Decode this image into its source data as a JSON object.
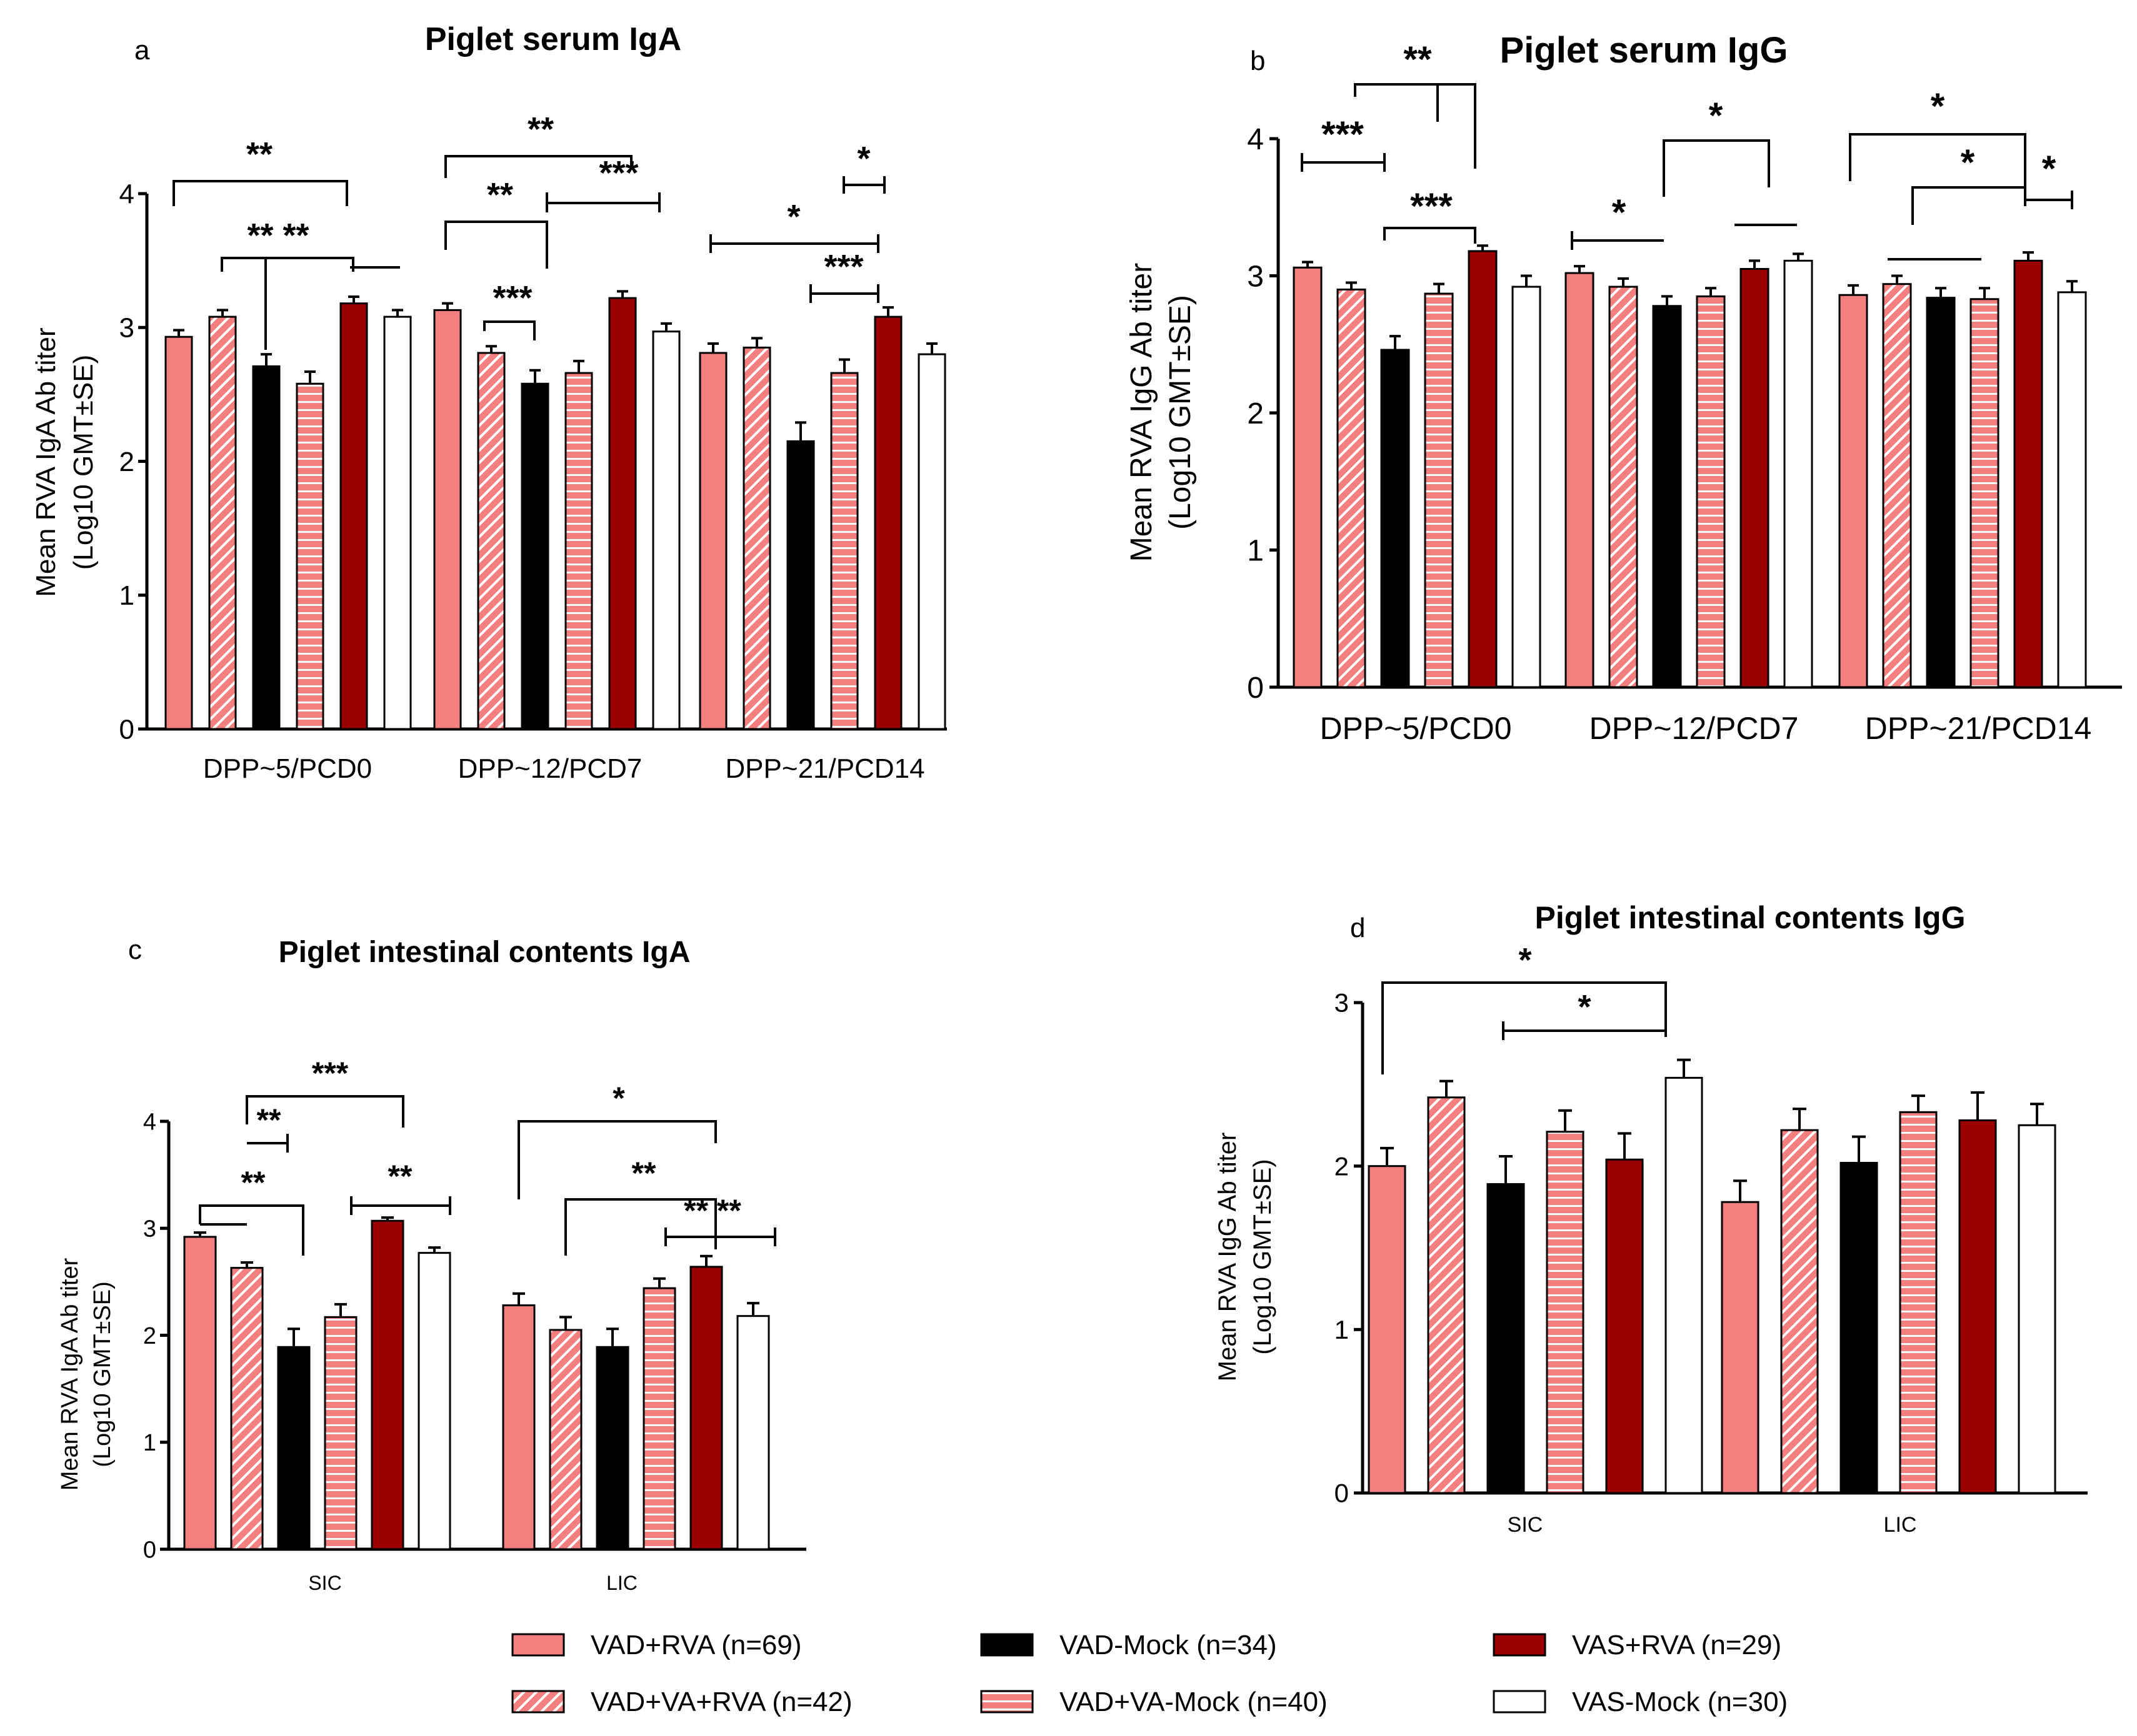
{
  "figure": {
    "group_colors": {
      "VAD+RVA": "#f47f7f",
      "VAD+VA+RVA": "#f47f7f",
      "VAD-Mock": "#000000",
      "VAD+VA-Mock": "#f47f7f",
      "VAS+RVA": "#9b0000",
      "VAS-Mock": "#ffffff"
    },
    "group_patterns": {
      "VAD+RVA": "solid",
      "VAD+VA+RVA": "diagonal-hatch",
      "VAD-Mock": "solid",
      "VAD+VA-Mock": "horizontal-lines",
      "VAS+RVA": "solid",
      "VAS-Mock": "solid"
    }
  },
  "legend": [
    {
      "group": "VAD+RVA",
      "label": "VAD+RVA (n=69)"
    },
    {
      "group": "VAD-Mock",
      "label": "VAD-Mock (n=34)"
    },
    {
      "group": "VAS+RVA",
      "label": "VAS+RVA (n=29)"
    },
    {
      "group": "VAD+VA+RVA",
      "label": "VAD+VA+RVA (n=42)"
    },
    {
      "group": "VAD+VA-Mock",
      "label": "VAD+VA-Mock (n=40)"
    },
    {
      "group": "VAS-Mock",
      "label": "VAS-Mock (n=30)"
    }
  ],
  "chart_data": [
    {
      "panel": "a",
      "type": "bar",
      "title": "Piglet serum IgA",
      "ylabel_line1": "Mean RVA IgA Ab titer",
      "ylabel_line2": "(Log10 GMT±SE)",
      "xlabel": "",
      "ylim": [
        0,
        4
      ],
      "yticks": [
        0,
        1,
        2,
        3,
        4
      ],
      "categories": [
        "DPP~5/PCD0",
        "DPP~12/PCD7",
        "DPP~21/PCD14"
      ],
      "series": [
        {
          "name": "VAD+RVA",
          "values": [
            2.93,
            3.13,
            2.81
          ],
          "se": [
            0.05,
            0.05,
            0.07
          ]
        },
        {
          "name": "VAD+VA+RVA",
          "values": [
            3.08,
            2.81,
            2.85
          ],
          "se": [
            0.05,
            0.05,
            0.07
          ]
        },
        {
          "name": "VAD-Mock",
          "values": [
            2.71,
            2.58,
            2.15
          ],
          "se": [
            0.09,
            0.1,
            0.14
          ]
        },
        {
          "name": "VAD+VA-Mock",
          "values": [
            2.58,
            2.66,
            2.66
          ],
          "se": [
            0.09,
            0.09,
            0.1
          ]
        },
        {
          "name": "VAS+RVA",
          "values": [
            3.18,
            3.22,
            3.08
          ],
          "se": [
            0.05,
            0.05,
            0.07
          ]
        },
        {
          "name": "VAS-Mock",
          "values": [
            3.08,
            2.97,
            2.8
          ],
          "se": [
            0.05,
            0.06,
            0.08
          ]
        }
      ],
      "annotations": [
        "**",
        "** **",
        "**",
        "***",
        "**",
        "***",
        "*",
        "*",
        "***"
      ]
    },
    {
      "panel": "b",
      "type": "bar",
      "title": "Piglet serum IgG",
      "ylabel_line1": "Mean RVA IgG Ab titer",
      "ylabel_line2": "(Log10 GMT±SE)",
      "xlabel": "",
      "ylim": [
        0,
        4
      ],
      "yticks": [
        0,
        1,
        2,
        3,
        4
      ],
      "categories": [
        "DPP~5/PCD0",
        "DPP~12/PCD7",
        "DPP~21/PCD14"
      ],
      "series": [
        {
          "name": "VAD+RVA",
          "values": [
            3.06,
            3.02,
            2.86
          ],
          "se": [
            0.04,
            0.05,
            0.07
          ]
        },
        {
          "name": "VAD+VA+RVA",
          "values": [
            2.9,
            2.92,
            2.94
          ],
          "se": [
            0.05,
            0.06,
            0.06
          ]
        },
        {
          "name": "VAD-Mock",
          "values": [
            2.46,
            2.78,
            2.84
          ],
          "se": [
            0.1,
            0.07,
            0.07
          ]
        },
        {
          "name": "VAD+VA-Mock",
          "values": [
            2.87,
            2.85,
            2.83
          ],
          "se": [
            0.07,
            0.06,
            0.08
          ]
        },
        {
          "name": "VAS+RVA",
          "values": [
            3.18,
            3.05,
            3.11
          ],
          "se": [
            0.04,
            0.06,
            0.06
          ]
        },
        {
          "name": "VAS-Mock",
          "values": [
            2.92,
            3.11,
            2.88
          ],
          "se": [
            0.08,
            0.05,
            0.08
          ]
        }
      ],
      "annotations": [
        "**",
        "***",
        "***",
        "*",
        "*",
        "*",
        "*",
        "*"
      ]
    },
    {
      "panel": "c",
      "type": "bar",
      "title": "Piglet intestinal contents IgA",
      "ylabel_line1": "Mean RVA IgA Ab titer",
      "ylabel_line2": "(Log10 GMT±SE)",
      "xlabel": "",
      "ylim": [
        0,
        4
      ],
      "yticks": [
        0,
        1,
        2,
        3,
        4
      ],
      "categories": [
        "SIC",
        "LIC"
      ],
      "series": [
        {
          "name": "VAD+RVA",
          "values": [
            2.92,
            2.28
          ],
          "se": [
            0.04,
            0.11
          ]
        },
        {
          "name": "VAD+VA+RVA",
          "values": [
            2.63,
            2.05
          ],
          "se": [
            0.05,
            0.12
          ]
        },
        {
          "name": "VAD-Mock",
          "values": [
            1.89,
            1.89
          ],
          "se": [
            0.17,
            0.17
          ]
        },
        {
          "name": "VAD+VA-Mock",
          "values": [
            2.17,
            2.44
          ],
          "se": [
            0.12,
            0.09
          ]
        },
        {
          "name": "VAS+RVA",
          "values": [
            3.07,
            2.64
          ],
          "se": [
            0.03,
            0.1
          ]
        },
        {
          "name": "VAS-Mock",
          "values": [
            2.77,
            2.18
          ],
          "se": [
            0.05,
            0.12
          ]
        }
      ],
      "annotations": [
        "***",
        "**",
        "**",
        "**",
        "*",
        "**",
        "** **"
      ]
    },
    {
      "panel": "d",
      "type": "bar",
      "title": "Piglet intestinal contents IgG",
      "ylabel_line1": "Mean RVA IgG Ab titer",
      "ylabel_line2": "(Log10 GMT±SE)",
      "xlabel": "",
      "ylim": [
        0,
        3
      ],
      "yticks": [
        0,
        1,
        2,
        3
      ],
      "categories": [
        "SIC",
        "LIC"
      ],
      "series": [
        {
          "name": "VAD+RVA",
          "values": [
            2.0,
            1.78
          ],
          "se": [
            0.11,
            0.13
          ]
        },
        {
          "name": "VAD+VA+RVA",
          "values": [
            2.42,
            2.22
          ],
          "se": [
            0.1,
            0.13
          ]
        },
        {
          "name": "VAD-Mock",
          "values": [
            1.89,
            2.02
          ],
          "se": [
            0.17,
            0.16
          ]
        },
        {
          "name": "VAD+VA-Mock",
          "values": [
            2.21,
            2.33
          ],
          "se": [
            0.13,
            0.1
          ]
        },
        {
          "name": "VAS+RVA",
          "values": [
            2.04,
            2.28
          ],
          "se": [
            0.16,
            0.17
          ]
        },
        {
          "name": "VAS-Mock",
          "values": [
            2.54,
            2.25
          ],
          "se": [
            0.11,
            0.13
          ]
        }
      ],
      "annotations": [
        "*",
        "*"
      ]
    }
  ]
}
